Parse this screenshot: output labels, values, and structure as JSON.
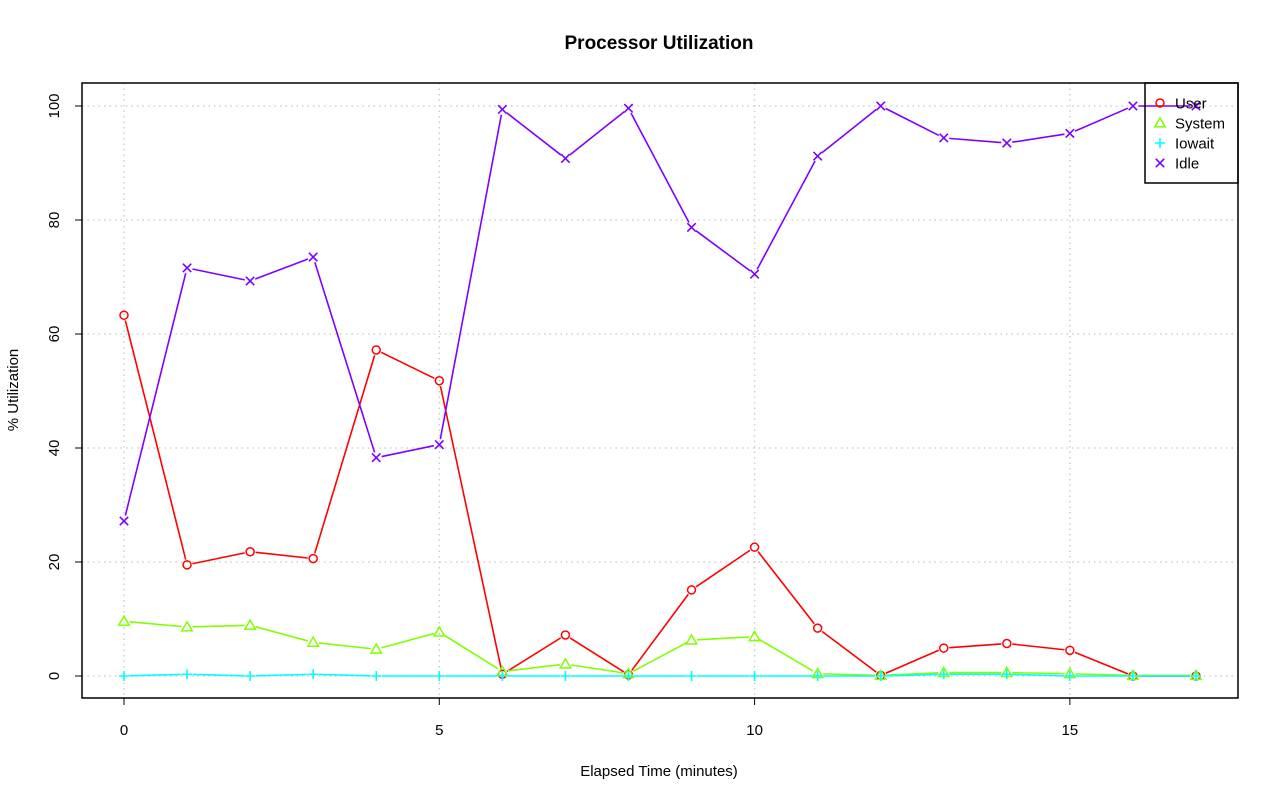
{
  "chart_data": {
    "type": "line",
    "title": "Processor Utilization",
    "xlabel": "Elapsed Time (minutes)",
    "ylabel": "% Utilization",
    "x": [
      0,
      1,
      2,
      3,
      4,
      5,
      6,
      7,
      8,
      9,
      10,
      11,
      12,
      13,
      14,
      15,
      16,
      17
    ],
    "xlim": [
      0,
      17
    ],
    "ylim": [
      0,
      100
    ],
    "x_ticks": [
      0,
      5,
      10,
      15
    ],
    "y_ticks": [
      0,
      20,
      40,
      60,
      80,
      100
    ],
    "grid": true,
    "legend_position": "top-right",
    "series": [
      {
        "name": "User",
        "color": "#ff0000",
        "marker": "circle",
        "values": [
          63.3,
          19.5,
          21.8,
          20.6,
          57.2,
          51.8,
          0.3,
          7.2,
          0.2,
          15.1,
          22.6,
          8.4,
          0.1,
          4.9,
          5.7,
          4.5,
          0.0,
          0.0
        ]
      },
      {
        "name": "System",
        "color": "#80ff00",
        "marker": "triangle",
        "values": [
          9.6,
          8.6,
          8.9,
          5.9,
          4.7,
          7.7,
          0.8,
          2.1,
          0.4,
          6.3,
          6.9,
          0.4,
          0.1,
          0.6,
          0.6,
          0.4,
          0.1,
          0.1
        ]
      },
      {
        "name": "Iowait",
        "color": "#00ffff",
        "marker": "plus",
        "values": [
          0.0,
          0.3,
          0.0,
          0.3,
          0.0,
          0.0,
          0.0,
          0.0,
          0.0,
          0.0,
          0.0,
          0.0,
          0.0,
          0.3,
          0.3,
          0.0,
          0.0,
          0.0
        ]
      },
      {
        "name": "Idle",
        "color": "#8000ff",
        "marker": "cross",
        "values": [
          27.2,
          71.6,
          69.3,
          73.5,
          38.3,
          40.6,
          99.4,
          90.8,
          99.6,
          78.7,
          70.5,
          91.2,
          100.0,
          94.4,
          93.5,
          95.2,
          100.0,
          100.0
        ]
      }
    ]
  }
}
